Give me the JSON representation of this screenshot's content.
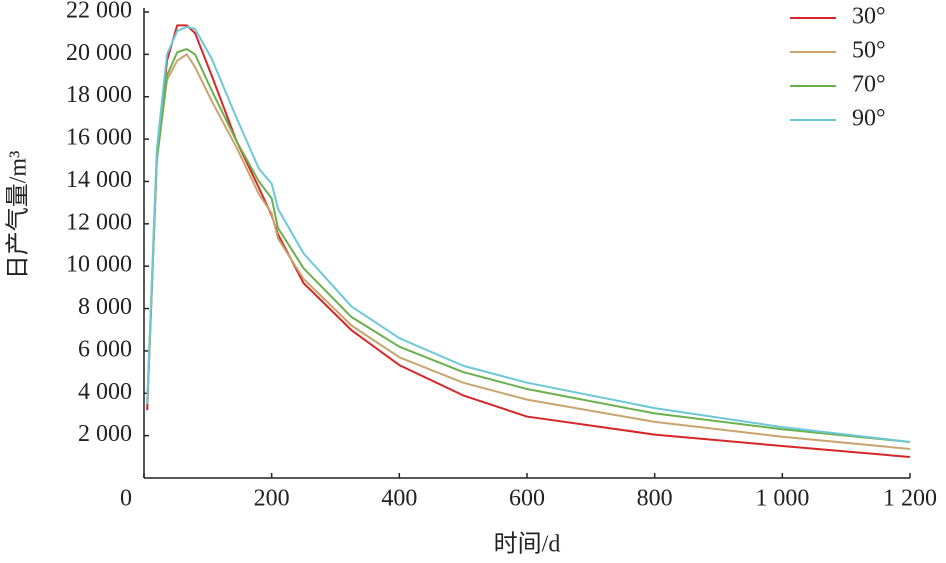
{
  "chart_data": {
    "type": "line",
    "x_label": "时间/d",
    "y_label": "日产气量/m³",
    "x": [
      5,
      20,
      36,
      52,
      67,
      80,
      106,
      145,
      180,
      200,
      210,
      250,
      325,
      400,
      500,
      600,
      800,
      1000,
      1200
    ],
    "series": [
      {
        "name": "30°",
        "color": "#d62728",
        "values": [
          3200,
          15000,
          19700,
          21370,
          21370,
          21000,
          19000,
          15900,
          13700,
          12400,
          11500,
          9200,
          6980,
          5330,
          3900,
          2900,
          2050,
          1510,
          990
        ]
      },
      {
        "name": "50°",
        "color": "#c8a46e",
        "values": [
          3500,
          15000,
          18800,
          19700,
          20000,
          19400,
          17800,
          15600,
          13400,
          12500,
          11300,
          9400,
          7200,
          5700,
          4500,
          3700,
          2650,
          1950,
          1370
        ]
      },
      {
        "name": "70°",
        "color": "#6ab04c",
        "values": [
          3500,
          15000,
          19000,
          20100,
          20250,
          20000,
          18300,
          15900,
          14000,
          13200,
          11800,
          9900,
          7600,
          6200,
          5000,
          4200,
          3050,
          2300,
          1700
        ]
      },
      {
        "name": "90°",
        "color": "#6cc8d8",
        "values": [
          3500,
          15500,
          20000,
          21100,
          21300,
          21200,
          19800,
          17000,
          14600,
          13900,
          12700,
          10600,
          8100,
          6600,
          5300,
          4500,
          3300,
          2400,
          1700
        ]
      }
    ],
    "xlim": [
      0,
      1200
    ],
    "xticks": [
      0,
      200,
      400,
      600,
      800,
      {
        "value": 1000,
        "label": "1 000"
      },
      {
        "value": 1200,
        "label": "1 200"
      }
    ],
    "ylim": [
      0,
      22000
    ],
    "yticks": [
      {
        "value": 2000,
        "label": "2 000"
      },
      {
        "value": 4000,
        "label": "4 000"
      },
      {
        "value": 6000,
        "label": "6 000"
      },
      {
        "value": 8000,
        "label": "8 000"
      },
      {
        "value": 10000,
        "label": "10 000"
      },
      {
        "value": 12000,
        "label": "12 000"
      },
      {
        "value": 14000,
        "label": "14 000"
      },
      {
        "value": 16000,
        "label": "16 000"
      },
      {
        "value": 18000,
        "label": "18 000"
      },
      {
        "value": 20000,
        "label": "20 000"
      },
      {
        "value": 22000,
        "label": "22 000"
      }
    ],
    "grid": false,
    "legend": "upper right"
  }
}
